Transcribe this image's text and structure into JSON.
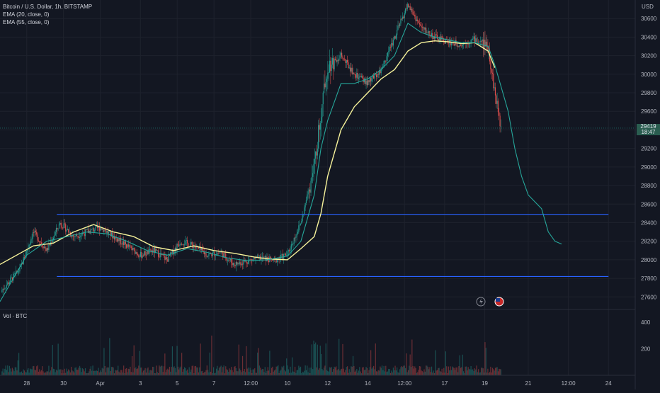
{
  "legend": {
    "title": "Bitcoin / U.S. Dollar, 1h, BITSTAMP",
    "ema20": "EMA (20, close, 0)",
    "ema55": "EMA (55, close, 0)"
  },
  "volume_label": "Vol · BTC",
  "currency": "USD",
  "last_price": {
    "price": "29419",
    "countdown": "18:47"
  },
  "colors": {
    "background": "#131722",
    "up": "#26a69a",
    "down": "#ef5350",
    "ema20": "#26a69a",
    "ema55": "#f7f39b",
    "level_lines": "#2962ff",
    "grid": "#1e222d"
  },
  "chart_data": {
    "type": "candlestick",
    "symbol": "BTC/USD",
    "exchange": "BITSTAMP",
    "interval": "1h",
    "x_ticks": [
      "28",
      "30",
      "Apr",
      "3",
      "5",
      "7",
      "12:00",
      "10",
      "12",
      "14",
      "12:00",
      "17",
      "19",
      "21",
      "12:00",
      "24"
    ],
    "y_ticks": [
      27600,
      27800,
      28000,
      28200,
      28400,
      28600,
      28800,
      29000,
      29200,
      29400,
      29600,
      29800,
      30000,
      30200,
      30400,
      30600
    ],
    "ylim": [
      27480,
      30800
    ],
    "volume_ticks": [
      200,
      400
    ],
    "horizontal_levels": [
      28490,
      27820
    ],
    "price_path": [
      [
        0,
        27650
      ],
      [
        3,
        27900
      ],
      [
        5,
        28300
      ],
      [
        7,
        28100
      ],
      [
        9,
        28400
      ],
      [
        11,
        28250
      ],
      [
        13,
        28300
      ],
      [
        15,
        28350
      ],
      [
        17,
        28250
      ],
      [
        19,
        28150
      ],
      [
        21,
        28050
      ],
      [
        23,
        28100
      ],
      [
        25,
        28000
      ],
      [
        27,
        28200
      ],
      [
        29,
        28150
      ],
      [
        31,
        28050
      ],
      [
        33,
        28080
      ],
      [
        35,
        27950
      ],
      [
        37,
        27990
      ],
      [
        39,
        28020
      ],
      [
        41,
        27990
      ],
      [
        43,
        28060
      ],
      [
        45,
        28400
      ],
      [
        47,
        29000
      ],
      [
        48,
        29600
      ],
      [
        49,
        30100
      ],
      [
        51,
        30200
      ],
      [
        53,
        30000
      ],
      [
        55,
        29900
      ],
      [
        57,
        30050
      ],
      [
        59,
        30400
      ],
      [
        61,
        30750
      ],
      [
        63,
        30500
      ],
      [
        65,
        30400
      ],
      [
        67,
        30350
      ],
      [
        69,
        30320
      ],
      [
        71,
        30380
      ],
      [
        73,
        30300
      ],
      [
        74,
        29800
      ],
      [
        75,
        29400
      ]
    ],
    "ema20_path": [
      [
        0,
        27550
      ],
      [
        4,
        28050
      ],
      [
        7,
        28200
      ],
      [
        10,
        28250
      ],
      [
        13,
        28300
      ],
      [
        16,
        28280
      ],
      [
        19,
        28200
      ],
      [
        22,
        28100
      ],
      [
        25,
        28050
      ],
      [
        28,
        28120
      ],
      [
        31,
        28080
      ],
      [
        34,
        28020
      ],
      [
        37,
        27990
      ],
      [
        40,
        28000
      ],
      [
        43,
        28040
      ],
      [
        45,
        28200
      ],
      [
        47,
        28700
      ],
      [
        48,
        29200
      ],
      [
        49,
        29500
      ],
      [
        51,
        29900
      ],
      [
        53,
        29900
      ],
      [
        55,
        29950
      ],
      [
        57,
        30050
      ],
      [
        59,
        30200
      ],
      [
        61,
        30550
      ],
      [
        63,
        30450
      ],
      [
        65,
        30400
      ],
      [
        67,
        30370
      ],
      [
        69,
        30340
      ],
      [
        71,
        30340
      ],
      [
        73,
        30300
      ],
      [
        74,
        30100
      ],
      [
        75,
        29850
      ],
      [
        76,
        29600
      ],
      [
        77,
        29200
      ],
      [
        78,
        28900
      ],
      [
        79,
        28700
      ],
      [
        81,
        28550
      ],
      [
        82,
        28300
      ],
      [
        83,
        28200
      ],
      [
        84,
        28170
      ]
    ],
    "ema55_path": [
      [
        0,
        27950
      ],
      [
        5,
        28150
      ],
      [
        8,
        28180
      ],
      [
        11,
        28300
      ],
      [
        14,
        28380
      ],
      [
        17,
        28300
      ],
      [
        20,
        28250
      ],
      [
        23,
        28140
      ],
      [
        26,
        28100
      ],
      [
        29,
        28150
      ],
      [
        32,
        28100
      ],
      [
        35,
        28070
      ],
      [
        38,
        28030
      ],
      [
        40,
        28010
      ],
      [
        43,
        28000
      ],
      [
        45,
        28120
      ],
      [
        47,
        28250
      ],
      [
        48,
        28500
      ],
      [
        49,
        28900
      ],
      [
        51,
        29400
      ],
      [
        53,
        29650
      ],
      [
        55,
        29800
      ],
      [
        57,
        29950
      ],
      [
        59,
        30050
      ],
      [
        61,
        30250
      ],
      [
        63,
        30340
      ],
      [
        65,
        30360
      ],
      [
        67,
        30350
      ],
      [
        69,
        30330
      ],
      [
        71,
        30340
      ],
      [
        73,
        30250
      ],
      [
        74,
        30070
      ]
    ],
    "x_domain": [
      0,
      95
    ]
  },
  "toolbar": {
    "flash_icon": "lightning-icon",
    "flag_icon": "us-flag-icon"
  }
}
